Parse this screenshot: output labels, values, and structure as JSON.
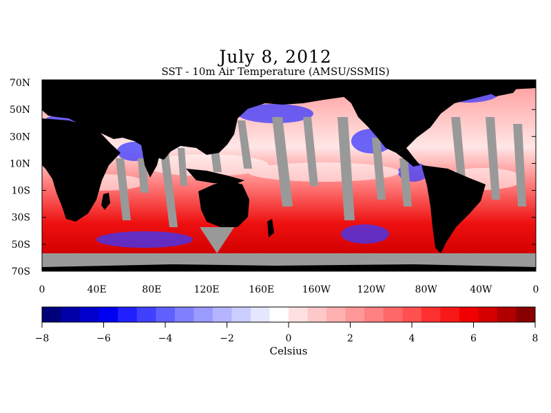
{
  "title": "July 8, 2012",
  "subtitle": "SST - 10m Air Temperature (AMSU/SSMIS)",
  "map": {
    "lat_labels": [
      "70N",
      "50N",
      "30N",
      "10N",
      "10S",
      "30S",
      "50S",
      "70S"
    ],
    "lon_labels": [
      "0",
      "40E",
      "80E",
      "120E",
      "160E",
      "160W",
      "120W",
      "80W",
      "40W",
      "0"
    ],
    "lon_range": [
      0,
      360
    ],
    "lat_range": [
      -70,
      70
    ],
    "colors": {
      "land": "#000000",
      "no_data": "#999999"
    }
  },
  "colorbar": {
    "min": -8,
    "max": 8,
    "tick_labels": [
      "−8",
      "−6",
      "−4",
      "−2",
      "0",
      "2",
      "4",
      "6",
      "8"
    ],
    "label": "Celsius",
    "colors": [
      "#00007a",
      "#0000a8",
      "#0000cc",
      "#0000f0",
      "#2020ff",
      "#4040ff",
      "#6060ff",
      "#8080ff",
      "#9a9aff",
      "#b4b4ff",
      "#cccdff",
      "#e5e6ff",
      "#ffffff",
      "#ffe0e0",
      "#ffc8c8",
      "#ffb0b0",
      "#ff9898",
      "#ff8080",
      "#ff6868",
      "#ff5050",
      "#ff3030",
      "#f81818",
      "#f00000",
      "#d40000",
      "#b00000",
      "#880000"
    ]
  }
}
